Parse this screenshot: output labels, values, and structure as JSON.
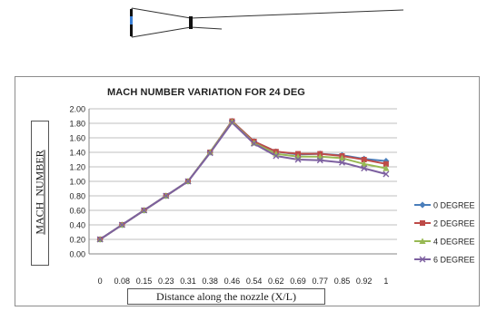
{
  "chart_data": {
    "type": "line",
    "title": "MACH NUMBER VARIATION FOR 24 DEG",
    "xlabel": "Distance along the nozzle (X/L)",
    "ylabel": "MACH_NUMBER",
    "categories": [
      "0",
      "0.08",
      "0.15",
      "0.23",
      "0.31",
      "0.38",
      "0.46",
      "0.54",
      "0.62",
      "0.69",
      "0.77",
      "0.85",
      "0.92",
      "1"
    ],
    "ylim": [
      0,
      2
    ],
    "ytick_labels": [
      "0.00",
      "0.20",
      "0.40",
      "0.60",
      "0.80",
      "1.00",
      "1.20",
      "1.40",
      "1.60",
      "1.80",
      "2.00"
    ],
    "grid": true,
    "legend_position": "right",
    "series": [
      {
        "name": "0 DEGREE",
        "color": "#4a7ebb",
        "marker": "diamond",
        "values": [
          0.2,
          0.4,
          0.6,
          0.8,
          1.0,
          1.4,
          1.83,
          1.55,
          1.41,
          1.37,
          1.38,
          1.36,
          1.31,
          1.28
        ]
      },
      {
        "name": "2 DEGREE",
        "color": "#be4b48",
        "marker": "square",
        "values": [
          0.2,
          0.4,
          0.6,
          0.8,
          1.0,
          1.4,
          1.83,
          1.55,
          1.41,
          1.38,
          1.38,
          1.35,
          1.3,
          1.24
        ]
      },
      {
        "name": "4 DEGREE",
        "color": "#98b954",
        "marker": "triangle",
        "values": [
          0.2,
          0.4,
          0.6,
          0.8,
          1.0,
          1.4,
          1.82,
          1.53,
          1.38,
          1.34,
          1.34,
          1.32,
          1.24,
          1.18
        ]
      },
      {
        "name": "6 DEGREE",
        "color": "#7d60a0",
        "marker": "x",
        "values": [
          0.2,
          0.4,
          0.6,
          0.8,
          1.0,
          1.39,
          1.81,
          1.52,
          1.35,
          1.3,
          1.29,
          1.26,
          1.18,
          1.1
        ]
      }
    ]
  },
  "nozzle_icon": "nozzle-geometry-icon"
}
